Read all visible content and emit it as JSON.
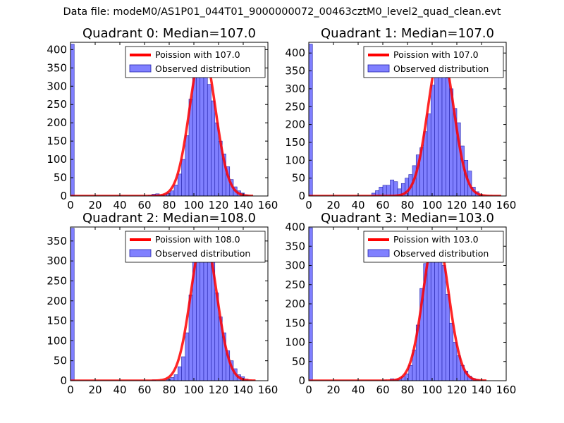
{
  "figure": {
    "suptitle": "Data file: modeM0/AS1P01_044T01_9000000072_00463cztM0_level2_quad_clean.evt"
  },
  "colors": {
    "bar_fill": "#8080ff",
    "bar_edge": "#2222aa",
    "fit_line": "#ff0000",
    "axes": "#000000"
  },
  "chart_data": [
    {
      "type": "bar",
      "title": "Quadrant 0: Median=107.0",
      "legend": [
        "Poission with 107.0",
        "Observed distribution"
      ],
      "legend_position": "top-right",
      "xlim": [
        0,
        160
      ],
      "ylim": [
        0,
        420
      ],
      "xticks": [
        0,
        20,
        40,
        60,
        80,
        100,
        120,
        140,
        160
      ],
      "yticks": [
        0,
        50,
        100,
        150,
        200,
        250,
        300,
        350,
        400
      ],
      "bin_width": 3,
      "bins": [
        [
          0,
          415
        ],
        [
          63,
          2
        ],
        [
          66,
          5
        ],
        [
          69,
          6
        ],
        [
          72,
          2
        ],
        [
          75,
          4
        ],
        [
          78,
          8
        ],
        [
          81,
          14
        ],
        [
          84,
          30
        ],
        [
          87,
          60
        ],
        [
          90,
          100
        ],
        [
          93,
          165
        ],
        [
          96,
          265
        ],
        [
          99,
          380
        ],
        [
          102,
          345
        ],
        [
          105,
          335
        ],
        [
          108,
          380
        ],
        [
          111,
          305
        ],
        [
          114,
          260
        ],
        [
          117,
          200
        ],
        [
          120,
          150
        ],
        [
          123,
          115
        ],
        [
          126,
          80
        ],
        [
          129,
          45
        ],
        [
          132,
          25
        ],
        [
          135,
          14
        ],
        [
          138,
          8
        ],
        [
          141,
          3
        ]
      ],
      "fit": {
        "mean": 107.0,
        "peak": 400,
        "x_range": [
          0,
          148
        ]
      }
    },
    {
      "type": "bar",
      "title": "Quadrant 1: Median=107.0",
      "legend": [
        "Poission with 107.0",
        "Observed distribution"
      ],
      "legend_position": "top-right",
      "xlim": [
        0,
        160
      ],
      "ylim": [
        0,
        430
      ],
      "xticks": [
        0,
        20,
        40,
        60,
        80,
        100,
        120,
        140,
        160
      ],
      "yticks": [
        0,
        50,
        100,
        150,
        200,
        250,
        300,
        350,
        400
      ],
      "bin_width": 3,
      "bins": [
        [
          0,
          425
        ],
        [
          51,
          8
        ],
        [
          54,
          15
        ],
        [
          57,
          25
        ],
        [
          60,
          30
        ],
        [
          63,
          30
        ],
        [
          66,
          45
        ],
        [
          69,
          40
        ],
        [
          72,
          20
        ],
        [
          75,
          35
        ],
        [
          78,
          50
        ],
        [
          81,
          60
        ],
        [
          84,
          85
        ],
        [
          87,
          115
        ],
        [
          90,
          135
        ],
        [
          93,
          180
        ],
        [
          96,
          230
        ],
        [
          99,
          310
        ],
        [
          102,
          345
        ],
        [
          105,
          380
        ],
        [
          108,
          360
        ],
        [
          111,
          330
        ],
        [
          114,
          300
        ],
        [
          117,
          245
        ],
        [
          120,
          205
        ],
        [
          123,
          140
        ],
        [
          126,
          100
        ],
        [
          129,
          70
        ],
        [
          132,
          25
        ],
        [
          135,
          12
        ],
        [
          138,
          4
        ]
      ],
      "fit": {
        "mean": 107.0,
        "peak": 410,
        "x_range": [
          0,
          156
        ]
      }
    },
    {
      "type": "bar",
      "title": "Quadrant 2: Median=108.0",
      "legend": [
        "Poission with 108.0",
        "Observed distribution"
      ],
      "legend_position": "top-right",
      "xlim": [
        0,
        160
      ],
      "ylim": [
        0,
        385
      ],
      "xticks": [
        0,
        20,
        40,
        60,
        80,
        100,
        120,
        140,
        160
      ],
      "yticks": [
        0,
        50,
        100,
        150,
        200,
        250,
        300,
        350
      ],
      "bin_width": 3,
      "bins": [
        [
          0,
          382
        ],
        [
          66,
          2
        ],
        [
          78,
          3
        ],
        [
          81,
          8
        ],
        [
          84,
          15
        ],
        [
          87,
          35
        ],
        [
          90,
          60
        ],
        [
          93,
          120
        ],
        [
          96,
          215
        ],
        [
          99,
          325
        ],
        [
          102,
          355
        ],
        [
          105,
          370
        ],
        [
          108,
          345
        ],
        [
          111,
          325
        ],
        [
          114,
          300
        ],
        [
          117,
          220
        ],
        [
          120,
          160
        ],
        [
          123,
          120
        ],
        [
          126,
          75
        ],
        [
          129,
          50
        ],
        [
          132,
          30
        ],
        [
          135,
          15
        ],
        [
          138,
          10
        ],
        [
          141,
          4
        ]
      ],
      "fit": {
        "mean": 108.0,
        "peak": 365,
        "x_range": [
          0,
          150
        ]
      }
    },
    {
      "type": "bar",
      "title": "Quadrant 3: Median=103.0",
      "legend": [
        "Poission with 103.0",
        "Observed distribution"
      ],
      "legend_position": "top-right",
      "xlim": [
        0,
        160
      ],
      "ylim": [
        0,
        400
      ],
      "xticks": [
        0,
        20,
        40,
        60,
        80,
        100,
        120,
        140,
        160
      ],
      "yticks": [
        0,
        50,
        100,
        150,
        200,
        250,
        300,
        350,
        400
      ],
      "bin_width": 3,
      "bins": [
        [
          0,
          398
        ],
        [
          60,
          2
        ],
        [
          66,
          5
        ],
        [
          69,
          3
        ],
        [
          72,
          4
        ],
        [
          75,
          10
        ],
        [
          78,
          18
        ],
        [
          81,
          40
        ],
        [
          84,
          80
        ],
        [
          87,
          145
        ],
        [
          90,
          240
        ],
        [
          93,
          305
        ],
        [
          96,
          330
        ],
        [
          99,
          385
        ],
        [
          102,
          335
        ],
        [
          105,
          370
        ],
        [
          108,
          300
        ],
        [
          111,
          225
        ],
        [
          114,
          150
        ],
        [
          117,
          100
        ],
        [
          120,
          65
        ],
        [
          123,
          40
        ],
        [
          126,
          25
        ],
        [
          129,
          12
        ],
        [
          132,
          6
        ],
        [
          135,
          3
        ]
      ],
      "fit": {
        "mean": 103.0,
        "peak": 385,
        "x_range": [
          0,
          144
        ]
      }
    }
  ]
}
